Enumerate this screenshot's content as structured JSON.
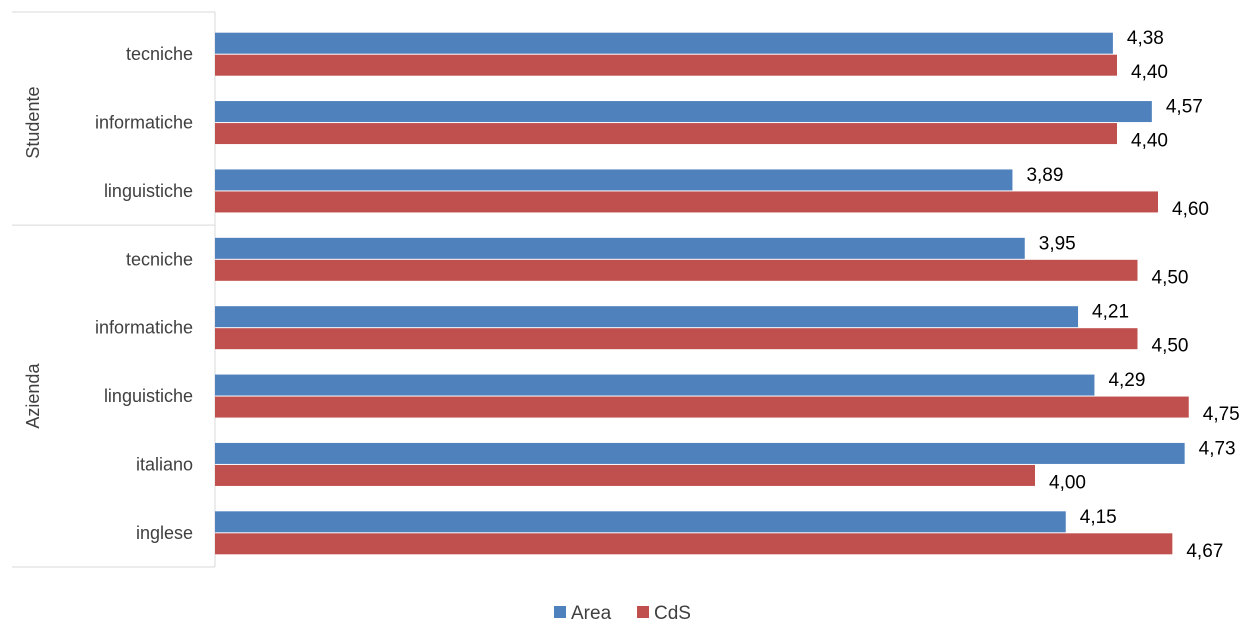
{
  "chart_data": {
    "type": "bar",
    "orientation": "horizontal",
    "title": "",
    "xlabel": "",
    "ylabel": "",
    "grid": false,
    "legend_position": "bottom",
    "groups": [
      {
        "name": "Studente",
        "categories": [
          "tecniche",
          "informatiche",
          "linguistiche"
        ],
        "series": [
          {
            "name": "Area",
            "values": [
              4.38,
              4.57,
              3.89
            ],
            "labels": [
              "4,38",
              "4,57",
              "3,89"
            ]
          },
          {
            "name": "CdS",
            "values": [
              4.4,
              4.4,
              4.6
            ],
            "labels": [
              "4,40",
              "4,40",
              "4,60"
            ]
          }
        ]
      },
      {
        "name": "Azienda",
        "categories": [
          "tecniche",
          "informatiche",
          "linguistiche",
          "italiano",
          "inglese"
        ],
        "series": [
          {
            "name": "Area",
            "values": [
              3.95,
              4.21,
              4.29,
              4.73,
              4.15
            ],
            "labels": [
              "3,95",
              "4,21",
              "4,29",
              "4,73",
              "4,15"
            ]
          },
          {
            "name": "CdS",
            "values": [
              4.5,
              4.5,
              4.75,
              4.0,
              4.67
            ],
            "labels": [
              "4,50",
              "4,50",
              "4,75",
              "4,00",
              "4,67"
            ]
          }
        ]
      }
    ],
    "legend": [
      "Area",
      "CdS"
    ],
    "colors": {
      "Area": "#4f81bd",
      "CdS": "#c0504d"
    }
  }
}
